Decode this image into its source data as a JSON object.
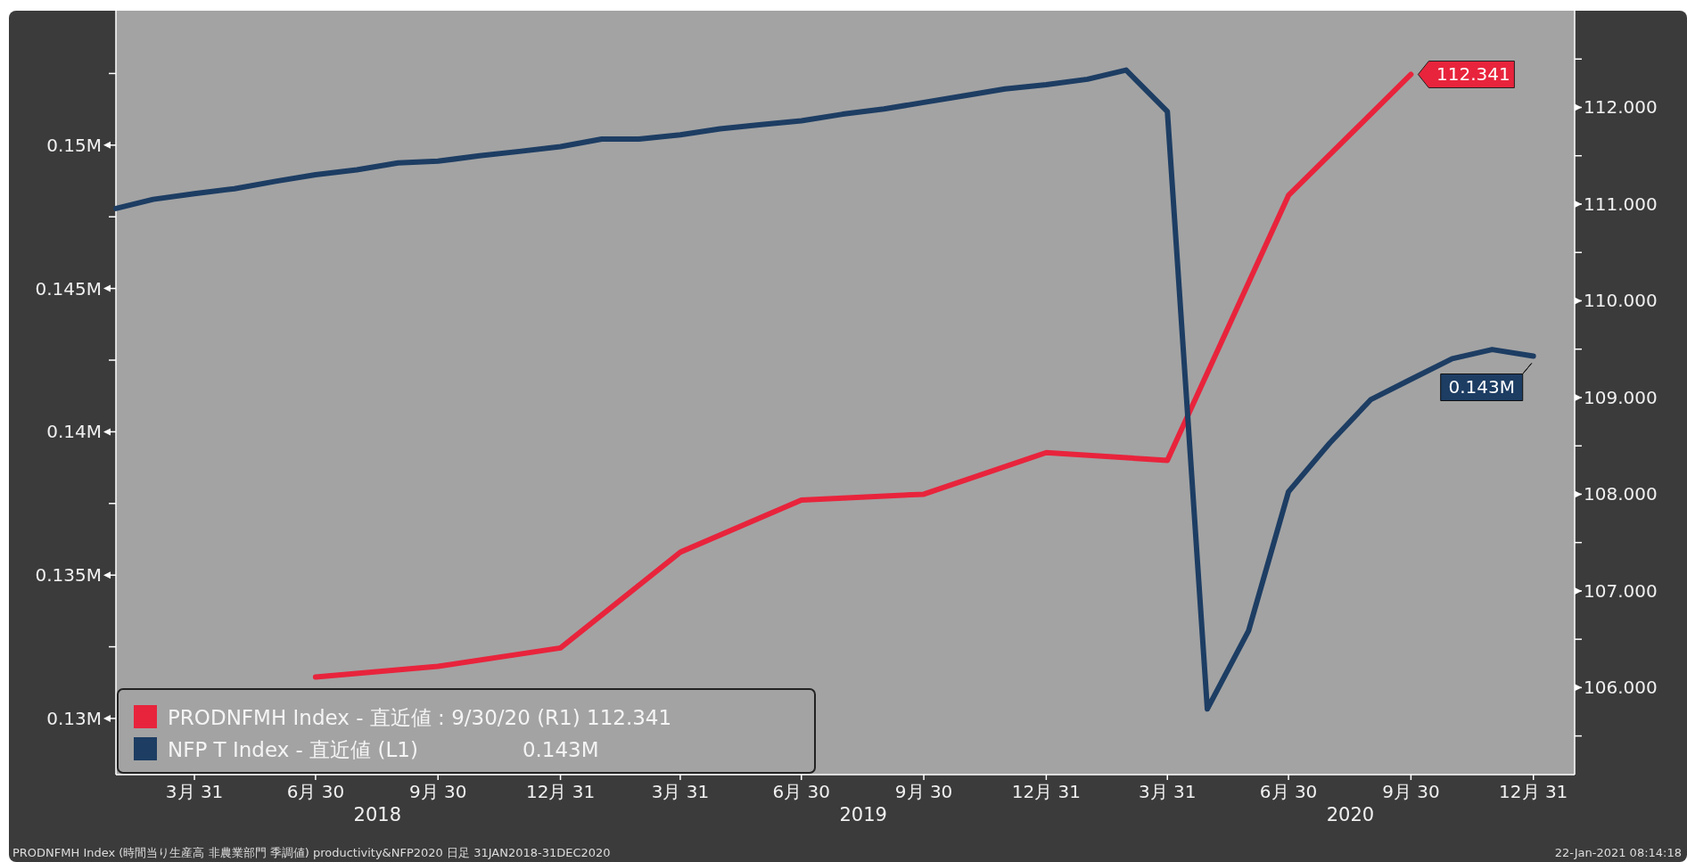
{
  "chart_data": {
    "type": "line",
    "x": [
      "2018-01-31",
      "2018-02-28",
      "2018-03-31",
      "2018-04-30",
      "2018-05-31",
      "2018-06-30",
      "2018-07-31",
      "2018-08-31",
      "2018-09-30",
      "2018-10-31",
      "2018-11-30",
      "2018-12-31",
      "2019-01-31",
      "2019-02-28",
      "2019-03-31",
      "2019-04-30",
      "2019-05-31",
      "2019-06-30",
      "2019-07-31",
      "2019-08-31",
      "2019-09-30",
      "2019-10-31",
      "2019-11-30",
      "2019-12-31",
      "2020-01-31",
      "2020-02-29",
      "2020-03-31",
      "2020-04-30",
      "2020-05-31",
      "2020-06-30",
      "2020-07-31",
      "2020-08-31",
      "2020-09-30",
      "2020-10-31",
      "2020-11-30",
      "2020-12-31"
    ],
    "series": [
      {
        "name": "PRODNFMH Index - 直近値 : 9/30/20 (R1) 112.341",
        "color": "#e8243c",
        "axis": "y2",
        "x": [
          "2018-06-30",
          "2018-09-30",
          "2018-12-31",
          "2019-03-31",
          "2019-06-30",
          "2019-09-30",
          "2019-12-31",
          "2020-03-31",
          "2020-06-30",
          "2020-09-30"
        ],
        "values": [
          106.11,
          106.22,
          106.41,
          107.4,
          107.94,
          108.0,
          108.43,
          108.35,
          111.09,
          112.341
        ],
        "value_labels": [
          null,
          null,
          null,
          null,
          null,
          null,
          null,
          null,
          null,
          "112.341"
        ]
      },
      {
        "name": "NFP T Index - 直近値 (L1)                0.143M",
        "color": "#1d3d63",
        "values": [
          0.14779,
          0.14811,
          0.14831,
          0.14848,
          0.14874,
          0.14897,
          0.14914,
          0.14938,
          0.14944,
          0.14963,
          0.14978,
          0.14995,
          0.15021,
          0.15021,
          0.15036,
          0.15057,
          0.15072,
          0.15085,
          0.15108,
          0.15126,
          0.15149,
          0.15173,
          0.15196,
          0.15211,
          0.1523,
          0.15262,
          0.15117,
          0.13033,
          0.13306,
          0.13791,
          0.13961,
          0.14113,
          0.14183,
          0.14255,
          0.14287,
          0.14264
        ],
        "value_labels": [
          null,
          null,
          null,
          null,
          null,
          null,
          null,
          null,
          null,
          null,
          null,
          null,
          null,
          null,
          null,
          null,
          null,
          null,
          null,
          null,
          null,
          null,
          null,
          null,
          null,
          null,
          null,
          null,
          null,
          null,
          null,
          null,
          null,
          null,
          null,
          "0.143M"
        ]
      }
    ],
    "xlim": [
      "2018-01-31",
      "2021-01-31"
    ],
    "xticks": [
      {
        "value": "2018-03-31",
        "label": "3月 31"
      },
      {
        "value": "2018-06-30",
        "label": "6月 30"
      },
      {
        "value": "2018-09-30",
        "label": "9月 30"
      },
      {
        "value": "2018-12-31",
        "label": "12月 31"
      },
      {
        "value": "2019-03-31",
        "label": "3月 31"
      },
      {
        "value": "2019-06-30",
        "label": "6月 30"
      },
      {
        "value": "2019-09-30",
        "label": "9月 30"
      },
      {
        "value": "2019-12-31",
        "label": "12月 31"
      },
      {
        "value": "2020-03-31",
        "label": "3月 31"
      },
      {
        "value": "2020-06-30",
        "label": "6月 30"
      },
      {
        "value": "2020-09-30",
        "label": "9月 30"
      },
      {
        "value": "2020-12-31",
        "label": "12月 31"
      }
    ],
    "ylim": [
      0.12804,
      0.15469
    ],
    "yticks": [
      {
        "value": 0.13,
        "label": "0.13M"
      },
      {
        "value": 0.1325,
        "label": null
      },
      {
        "value": 0.135,
        "label": "0.135M"
      },
      {
        "value": 0.1375,
        "label": null
      },
      {
        "value": 0.14,
        "label": "0.14M"
      },
      {
        "value": 0.1425,
        "label": null
      },
      {
        "value": 0.145,
        "label": "0.145M"
      },
      {
        "value": 0.1475,
        "label": null
      },
      {
        "value": 0.15,
        "label": "0.15M"
      },
      {
        "value": 0.1525,
        "label": null
      }
    ],
    "y2lim": [
      105.1,
      113.0
    ],
    "y2ticks": [
      {
        "value": 105.5,
        "label": null
      },
      {
        "value": 106,
        "label": "106.000"
      },
      {
        "value": 106.5,
        "label": null
      },
      {
        "value": 107,
        "label": "107.000"
      },
      {
        "value": 107.5,
        "label": null
      },
      {
        "value": 108,
        "label": "108.000"
      },
      {
        "value": 108.5,
        "label": null
      },
      {
        "value": 109,
        "label": "109.000"
      },
      {
        "value": 109.5,
        "label": null
      },
      {
        "value": 110,
        "label": "110.000"
      },
      {
        "value": 110.5,
        "label": null
      },
      {
        "value": 111,
        "label": "111.000"
      },
      {
        "value": 111.5,
        "label": null
      },
      {
        "value": 112,
        "label": "112.000"
      },
      {
        "value": 112.5,
        "label": null
      }
    ],
    "legend": "bottom left",
    "annotations": [
      "2018",
      "2019",
      "2020",
      "PRODNFMH Index (時間当り生産高 非農業部門 季調値) productivity&NFP2020 日足 31JAN2018-31DEC2020",
      "22-Jan-2021 08:14:18"
    ]
  }
}
